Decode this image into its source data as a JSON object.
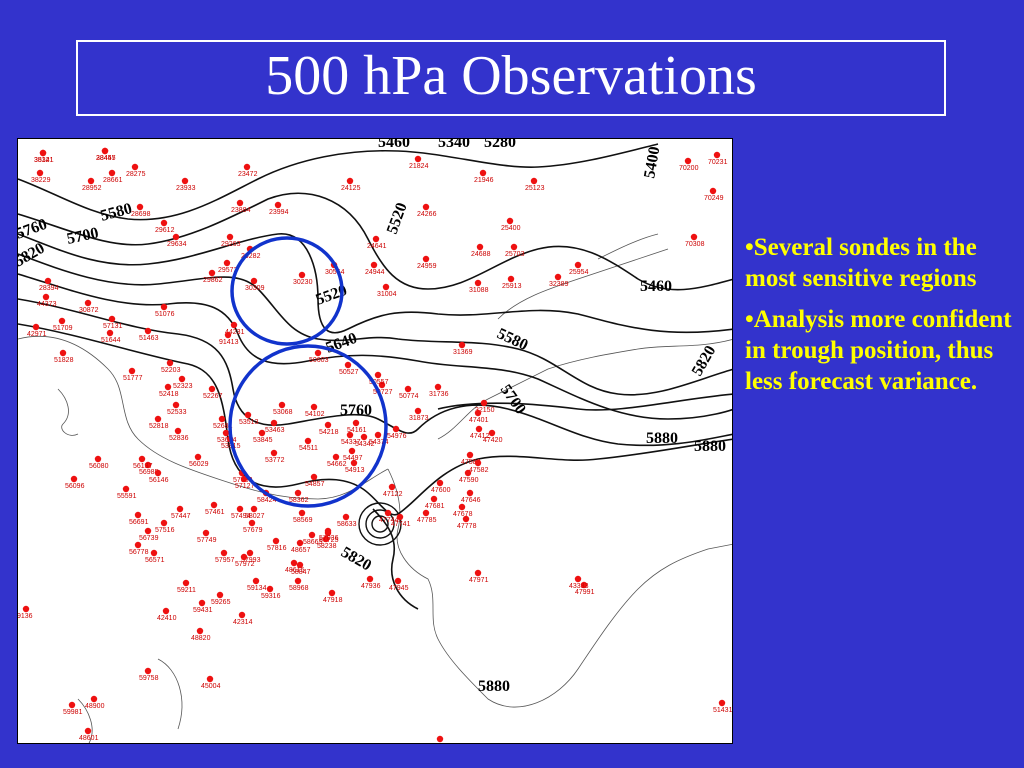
{
  "title": "500 hPa Observations",
  "bullets": [
    "•Several sondes in the most sensitive regions",
    "•Analysis more confident in trough position, thus less forecast variance."
  ],
  "colors": {
    "background": "#3333cc",
    "title_text": "#ffffff",
    "bullet_text": "#ffff00",
    "station_dot": "#ee1111",
    "highlight_circle": "#1133cc"
  },
  "map": {
    "contour_labels": [
      "5580",
      "5700",
      "5760",
      "5820",
      "5400",
      "5460",
      "5520",
      "5640",
      "5580",
      "5700",
      "5820",
      "5880",
      "5880",
      "5880",
      "5760",
      "5820",
      "5280",
      "5340",
      "5460",
      "5520"
    ],
    "stations": [
      "35121",
      "28445",
      "38229",
      "28661",
      "28275",
      "28952",
      "23933",
      "23472",
      "21824",
      "21946",
      "25123",
      "70200",
      "70231",
      "70249",
      "70308",
      "23884",
      "28698",
      "29612",
      "29263",
      "29282",
      "29572",
      "29634",
      "23994",
      "24125",
      "24266",
      "24641",
      "24944",
      "24959",
      "25400",
      "24688",
      "25703",
      "25913",
      "25954",
      "32389",
      "31088",
      "31004",
      "30230",
      "30309",
      "30554",
      "29862",
      "28394",
      "44231",
      "30872",
      "51463",
      "51644",
      "51076",
      "52203",
      "52323",
      "51709",
      "51777",
      "51828",
      "52267",
      "52418",
      "52533",
      "52681",
      "52818",
      "52836",
      "53068",
      "53463",
      "53513",
      "53614",
      "53772",
      "53845",
      "53915",
      "54102",
      "54161",
      "54218",
      "54337",
      "54342",
      "54374",
      "54511",
      "54662",
      "54497",
      "54857",
      "54913",
      "54976",
      "50727",
      "50774",
      "50557",
      "50527",
      "50603",
      "31736",
      "31873",
      "31369",
      "32150",
      "47401",
      "47412",
      "47420",
      "47580",
      "47582",
      "47590",
      "47600",
      "47646",
      "47681",
      "47678",
      "47778",
      "47785",
      "47744",
      "47741",
      "47122",
      "47945",
      "47936",
      "47971",
      "47991",
      "47918",
      "58968",
      "58847",
      "59134",
      "59316",
      "59265",
      "59211",
      "59431",
      "57993",
      "57972",
      "57957",
      "57749",
      "57816",
      "57679",
      "57494",
      "57461",
      "57447",
      "57516",
      "56691",
      "56739",
      "56778",
      "56571",
      "56985",
      "56146",
      "56137",
      "56029",
      "56080",
      "56096",
      "55591",
      "42410",
      "42314",
      "48820",
      "45004",
      "59758",
      "59981",
      "48900",
      "48601",
      "48615",
      "48657",
      "58725",
      "58665",
      "58569",
      "58633",
      "58238",
      "58362",
      "58424",
      "58027",
      "57083",
      "57127",
      "57131",
      "57036",
      "51431",
      "58457",
      "9136",
      "91413",
      "43333",
      "44373",
      "42971",
      "38341",
      "38457"
    ]
  }
}
